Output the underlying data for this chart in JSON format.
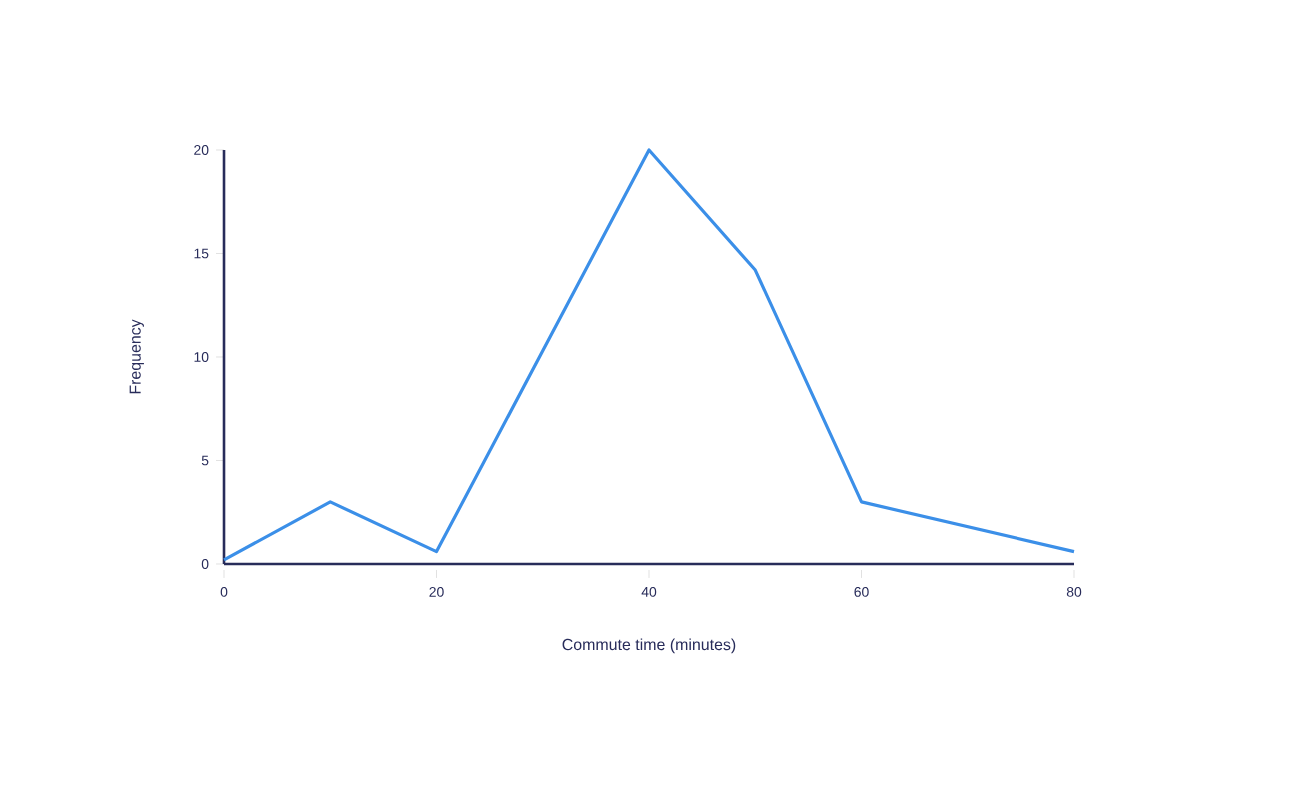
{
  "chart_data": {
    "type": "line",
    "xlabel": "Commute time (minutes)",
    "ylabel": "Frequency",
    "x": [
      0,
      10,
      20,
      30,
      40,
      50,
      60,
      80
    ],
    "series": [
      {
        "color": "#3b8fe8",
        "values": [
          0.2,
          3,
          0.6,
          10.3,
          20,
          14.2,
          3,
          0.6
        ]
      }
    ],
    "xlim": [
      0,
      80
    ],
    "ylim": [
      0,
      20
    ],
    "xticks": [
      0,
      20,
      40,
      60,
      80
    ],
    "yticks": [
      0,
      5,
      10,
      15,
      20
    ],
    "grid": false,
    "marker": "none",
    "line_style": "solid"
  }
}
